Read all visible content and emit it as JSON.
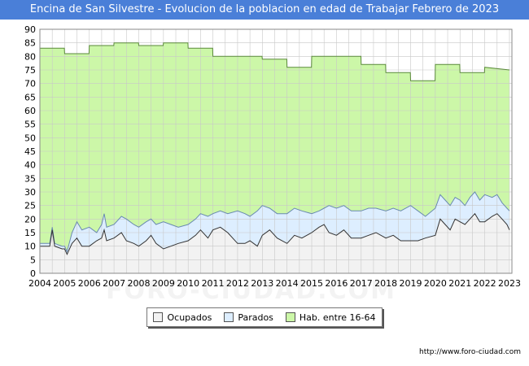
{
  "header": {
    "title": "Encina de San Silvestre - Evolucion de la poblacion en edad de Trabajar Febrero de 2023"
  },
  "footer": {
    "source": "http://www.foro-ciudad.com",
    "watermark": "FORO-CIUDAD.COM"
  },
  "colors": {
    "hab": "#ccf7a8",
    "hab_line": "#5a8a3a",
    "parados": "#ddeeff",
    "parados_line": "#6a8ab0",
    "ocupados": "#f2f2f2",
    "ocupados_line": "#333333",
    "grid": "#c8c8c8"
  },
  "chart_data": {
    "type": "area",
    "title": "Encina de San Silvestre - Evolucion de la poblacion en edad de Trabajar Febrero de 2023",
    "xlabel": "",
    "ylabel": "",
    "xlim": [
      2004,
      2023.1
    ],
    "ylim": [
      0,
      90
    ],
    "yticks": [
      0,
      5,
      10,
      15,
      20,
      25,
      30,
      35,
      40,
      45,
      50,
      55,
      60,
      65,
      70,
      75,
      80,
      85,
      90
    ],
    "xticks": [
      "2004",
      "2005",
      "2006",
      "2007",
      "2008",
      "2009",
      "2010",
      "2011",
      "2012",
      "2013",
      "2014",
      "2015",
      "2016",
      "2017",
      "2018",
      "2019",
      "2020",
      "2021",
      "2022",
      "2023"
    ],
    "grid": true,
    "legend_position": "bottom",
    "legend": [
      "Ocupados",
      "Parados",
      "Hab. entre 16-64"
    ],
    "series": [
      {
        "name": "Hab. entre 16-64",
        "points": [
          [
            2004.0,
            83
          ],
          [
            2004.99,
            83
          ],
          [
            2005.0,
            81
          ],
          [
            2005.99,
            81
          ],
          [
            2006.0,
            84
          ],
          [
            2006.99,
            84
          ],
          [
            2007.0,
            85
          ],
          [
            2007.99,
            85
          ],
          [
            2008.0,
            84
          ],
          [
            2008.99,
            84
          ],
          [
            2009.0,
            85
          ],
          [
            2009.99,
            85
          ],
          [
            2010.0,
            83
          ],
          [
            2010.99,
            83
          ],
          [
            2011.0,
            80
          ],
          [
            2012.99,
            80
          ],
          [
            2013.0,
            79
          ],
          [
            2013.99,
            79
          ],
          [
            2014.0,
            76
          ],
          [
            2014.99,
            76
          ],
          [
            2015.0,
            80
          ],
          [
            2016.99,
            80
          ],
          [
            2017.0,
            77
          ],
          [
            2017.99,
            77
          ],
          [
            2018.0,
            74
          ],
          [
            2018.99,
            74
          ],
          [
            2019.0,
            71
          ],
          [
            2019.99,
            71
          ],
          [
            2020.0,
            77
          ],
          [
            2020.99,
            77
          ],
          [
            2021.0,
            74
          ],
          [
            2021.99,
            74
          ],
          [
            2022.0,
            76
          ],
          [
            2023.0,
            75
          ]
        ]
      },
      {
        "name": "Parados",
        "points": [
          [
            2004.0,
            11
          ],
          [
            2004.4,
            11
          ],
          [
            2004.5,
            17
          ],
          [
            2004.6,
            11
          ],
          [
            2004.9,
            10
          ],
          [
            2005.0,
            10
          ],
          [
            2005.1,
            8
          ],
          [
            2005.3,
            15
          ],
          [
            2005.5,
            19
          ],
          [
            2005.7,
            16
          ],
          [
            2006.0,
            17
          ],
          [
            2006.3,
            15
          ],
          [
            2006.5,
            18
          ],
          [
            2006.6,
            22
          ],
          [
            2006.7,
            17
          ],
          [
            2007.0,
            18
          ],
          [
            2007.3,
            21
          ],
          [
            2007.5,
            20
          ],
          [
            2007.8,
            18
          ],
          [
            2008.0,
            17
          ],
          [
            2008.3,
            19
          ],
          [
            2008.5,
            20
          ],
          [
            2008.7,
            18
          ],
          [
            2009.0,
            19
          ],
          [
            2009.3,
            18
          ],
          [
            2009.6,
            17
          ],
          [
            2010.0,
            18
          ],
          [
            2010.3,
            20
          ],
          [
            2010.5,
            22
          ],
          [
            2010.8,
            21
          ],
          [
            2011.0,
            22
          ],
          [
            2011.3,
            23
          ],
          [
            2011.6,
            22
          ],
          [
            2012.0,
            23
          ],
          [
            2012.3,
            22
          ],
          [
            2012.5,
            21
          ],
          [
            2012.8,
            23
          ],
          [
            2013.0,
            25
          ],
          [
            2013.3,
            24
          ],
          [
            2013.6,
            22
          ],
          [
            2014.0,
            22
          ],
          [
            2014.3,
            24
          ],
          [
            2014.6,
            23
          ],
          [
            2015.0,
            22
          ],
          [
            2015.3,
            23
          ],
          [
            2015.5,
            24
          ],
          [
            2015.7,
            25
          ],
          [
            2016.0,
            24
          ],
          [
            2016.3,
            25
          ],
          [
            2016.6,
            23
          ],
          [
            2017.0,
            23
          ],
          [
            2017.3,
            24
          ],
          [
            2017.6,
            24
          ],
          [
            2018.0,
            23
          ],
          [
            2018.3,
            24
          ],
          [
            2018.6,
            23
          ],
          [
            2019.0,
            25
          ],
          [
            2019.3,
            23
          ],
          [
            2019.6,
            21
          ],
          [
            2020.0,
            24
          ],
          [
            2020.2,
            29
          ],
          [
            2020.4,
            27
          ],
          [
            2020.6,
            25
          ],
          [
            2020.8,
            28
          ],
          [
            2021.0,
            27
          ],
          [
            2021.2,
            25
          ],
          [
            2021.4,
            28
          ],
          [
            2021.6,
            30
          ],
          [
            2021.8,
            27
          ],
          [
            2022.0,
            29
          ],
          [
            2022.3,
            28
          ],
          [
            2022.5,
            29
          ],
          [
            2022.7,
            26
          ],
          [
            2022.9,
            24
          ],
          [
            2023.0,
            23
          ]
        ]
      },
      {
        "name": "Ocupados",
        "points": [
          [
            2004.0,
            10
          ],
          [
            2004.4,
            10
          ],
          [
            2004.5,
            16
          ],
          [
            2004.6,
            10
          ],
          [
            2004.9,
            9
          ],
          [
            2005.0,
            9
          ],
          [
            2005.1,
            7
          ],
          [
            2005.3,
            11
          ],
          [
            2005.5,
            13
          ],
          [
            2005.7,
            10
          ],
          [
            2006.0,
            10
          ],
          [
            2006.3,
            12
          ],
          [
            2006.5,
            13
          ],
          [
            2006.6,
            16
          ],
          [
            2006.7,
            12
          ],
          [
            2007.0,
            13
          ],
          [
            2007.3,
            15
          ],
          [
            2007.5,
            12
          ],
          [
            2007.8,
            11
          ],
          [
            2008.0,
            10
          ],
          [
            2008.3,
            12
          ],
          [
            2008.5,
            14
          ],
          [
            2008.7,
            11
          ],
          [
            2009.0,
            9
          ],
          [
            2009.3,
            10
          ],
          [
            2009.6,
            11
          ],
          [
            2010.0,
            12
          ],
          [
            2010.3,
            14
          ],
          [
            2010.5,
            16
          ],
          [
            2010.8,
            13
          ],
          [
            2011.0,
            16
          ],
          [
            2011.3,
            17
          ],
          [
            2011.6,
            15
          ],
          [
            2012.0,
            11
          ],
          [
            2012.3,
            11
          ],
          [
            2012.5,
            12
          ],
          [
            2012.8,
            10
          ],
          [
            2013.0,
            14
          ],
          [
            2013.3,
            16
          ],
          [
            2013.6,
            13
          ],
          [
            2014.0,
            11
          ],
          [
            2014.3,
            14
          ],
          [
            2014.6,
            13
          ],
          [
            2015.0,
            15
          ],
          [
            2015.3,
            17
          ],
          [
            2015.5,
            18
          ],
          [
            2015.7,
            15
          ],
          [
            2016.0,
            14
          ],
          [
            2016.3,
            16
          ],
          [
            2016.6,
            13
          ],
          [
            2017.0,
            13
          ],
          [
            2017.3,
            14
          ],
          [
            2017.6,
            15
          ],
          [
            2018.0,
            13
          ],
          [
            2018.3,
            14
          ],
          [
            2018.6,
            12
          ],
          [
            2019.0,
            12
          ],
          [
            2019.3,
            12
          ],
          [
            2019.6,
            13
          ],
          [
            2020.0,
            14
          ],
          [
            2020.2,
            20
          ],
          [
            2020.4,
            18
          ],
          [
            2020.6,
            16
          ],
          [
            2020.8,
            20
          ],
          [
            2021.0,
            19
          ],
          [
            2021.2,
            18
          ],
          [
            2021.4,
            20
          ],
          [
            2021.6,
            22
          ],
          [
            2021.8,
            19
          ],
          [
            2022.0,
            19
          ],
          [
            2022.3,
            21
          ],
          [
            2022.5,
            22
          ],
          [
            2022.7,
            20
          ],
          [
            2022.9,
            18
          ],
          [
            2023.0,
            16
          ]
        ]
      }
    ]
  }
}
